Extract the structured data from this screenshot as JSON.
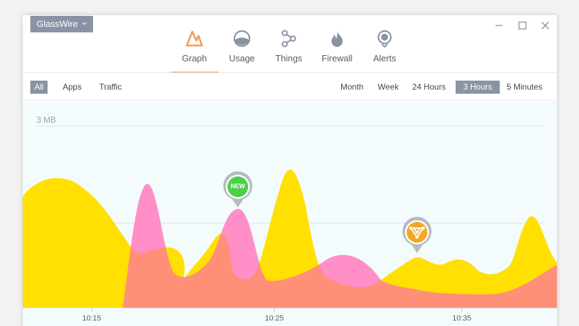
{
  "app_menu": {
    "label": "GlassWire"
  },
  "nav": {
    "tabs": [
      {
        "label": "Graph",
        "icon": "graph-icon",
        "active": true
      },
      {
        "label": "Usage",
        "icon": "usage-icon"
      },
      {
        "label": "Things",
        "icon": "things-icon"
      },
      {
        "label": "Firewall",
        "icon": "firewall-icon"
      },
      {
        "label": "Alerts",
        "icon": "alerts-icon"
      }
    ]
  },
  "filters": {
    "left": [
      "All",
      "Apps",
      "Traffic"
    ],
    "left_active": "All",
    "right": [
      "Month",
      "Week",
      "24  Hours",
      "3  Hours",
      "5 Minutes"
    ],
    "right_active": "3  Hours"
  },
  "graph": {
    "scale_label": "3 MB",
    "time_ticks": [
      "10:15",
      "10:25",
      "10:35"
    ],
    "markers": [
      {
        "label": "NEW",
        "color": "#4cd04c"
      },
      {
        "icon": "network-device-icon",
        "color": "#f5a623"
      }
    ],
    "colors": {
      "incoming": "#ffe000",
      "outgoing": "#ff8fc6",
      "overlap": "#ff8f77",
      "accent": "#f39a55"
    }
  }
}
